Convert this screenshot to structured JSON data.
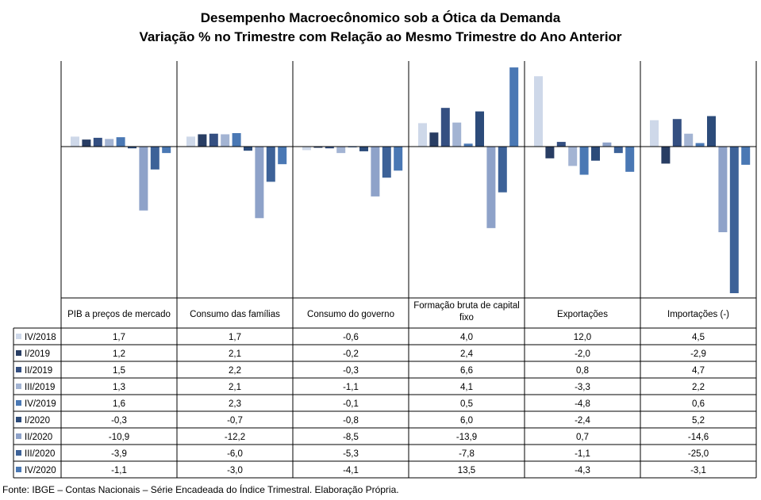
{
  "titles": {
    "line1": "Desempenho Macroecônomico sob a Ótica da Demanda",
    "line2": "Variação % no Trimestre com Relação ao Mesmo Trimestre do Ano Anterior"
  },
  "source": "Fonte: IBGE – Contas Nacionais – Série Encadeada do Índice Trimestral. Elaboração Própria.",
  "chart_data": {
    "type": "bar",
    "categories": [
      [
        "PIB a preços de mercado"
      ],
      [
        "Consumo das famílias"
      ],
      [
        "Consumo do governo"
      ],
      [
        "Formação bruta de capital",
        "fixo"
      ],
      [
        "Exportações"
      ],
      [
        "Importações (-)"
      ]
    ],
    "series": [
      {
        "name": "IV/2018",
        "color": "#ced8e9",
        "values": [
          1.7,
          1.7,
          -0.6,
          4.0,
          12.0,
          4.5
        ]
      },
      {
        "name": "I/2019",
        "color": "#283d63",
        "values": [
          1.2,
          2.1,
          -0.2,
          2.4,
          -2.0,
          -2.9
        ]
      },
      {
        "name": "II/2019",
        "color": "#344f81",
        "values": [
          1.5,
          2.2,
          -0.3,
          6.6,
          0.8,
          4.7
        ]
      },
      {
        "name": "III/2019",
        "color": "#a3b4d3",
        "values": [
          1.3,
          2.1,
          -1.1,
          4.1,
          -3.3,
          2.2
        ]
      },
      {
        "name": "IV/2019",
        "color": "#4a78b4",
        "values": [
          1.6,
          2.3,
          -0.1,
          0.5,
          -4.8,
          0.6
        ]
      },
      {
        "name": "I/2020",
        "color": "#2c4b7a",
        "values": [
          -0.3,
          -0.7,
          -0.8,
          6.0,
          -2.4,
          5.2
        ]
      },
      {
        "name": "II/2020",
        "color": "#8ea2c9",
        "values": [
          -10.9,
          -12.2,
          -8.5,
          -13.9,
          0.7,
          -14.6
        ]
      },
      {
        "name": "III/2020",
        "color": "#3d6298",
        "values": [
          -3.9,
          -6.0,
          -5.3,
          -7.8,
          -1.1,
          -25.0
        ]
      },
      {
        "name": "IV/2020",
        "color": "#4a78b4",
        "values": [
          -1.1,
          -3.0,
          -4.1,
          13.5,
          -4.3,
          -3.1
        ]
      }
    ],
    "display": [
      [
        "1,7",
        "1,7",
        "-0,6",
        "4,0",
        "12,0",
        "4,5"
      ],
      [
        "1,2",
        "2,1",
        "-0,2",
        "2,4",
        "-2,0",
        "-2,9"
      ],
      [
        "1,5",
        "2,2",
        "-0,3",
        "6,6",
        "0,8",
        "4,7"
      ],
      [
        "1,3",
        "2,1",
        "-1,1",
        "4,1",
        "-3,3",
        "2,2"
      ],
      [
        "1,6",
        "2,3",
        "-0,1",
        "0,5",
        "-4,8",
        "0,6"
      ],
      [
        "-0,3",
        "-0,7",
        "-0,8",
        "6,0",
        "-2,4",
        "5,2"
      ],
      [
        "-10,9",
        "-12,2",
        "-8,5",
        "-13,9",
        "0,7",
        "-14,6"
      ],
      [
        "-3,9",
        "-6,0",
        "-5,3",
        "-7,8",
        "-1,1",
        "-25,0"
      ],
      [
        "-1,1",
        "-3,0",
        "-4,1",
        "13,5",
        "-4,3",
        "-3,1"
      ]
    ],
    "ylim": [
      -25.0,
      13.5
    ],
    "legend": "data-table"
  }
}
